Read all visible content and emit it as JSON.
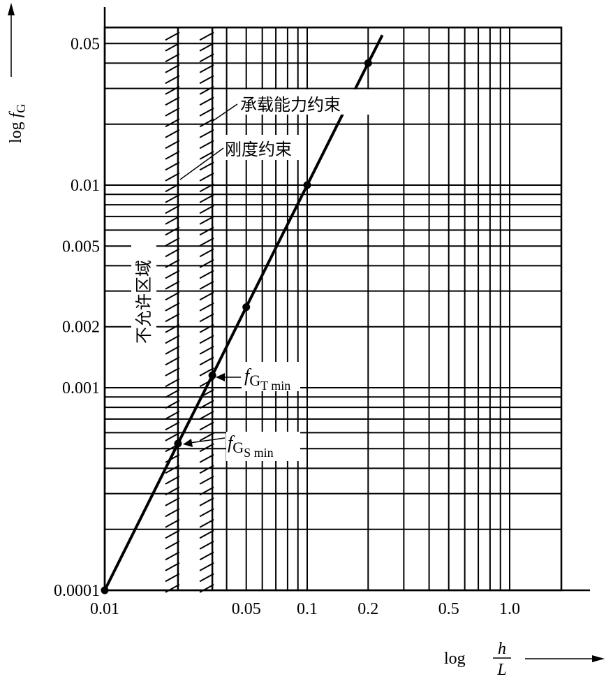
{
  "chart_data": {
    "type": "line",
    "scale": "log-log",
    "xlabel": {
      "prefix": "log",
      "numerator": "h",
      "denominator": "L"
    },
    "ylabel": {
      "prefix": "log",
      "var": "f",
      "sub": "G"
    },
    "xlim": [
      0.01,
      1.8
    ],
    "ylim": [
      0.0001,
      0.06
    ],
    "x_tick_labels": [
      {
        "value": 0.01,
        "label": "0.01"
      },
      {
        "value": 0.05,
        "label": "0.05"
      },
      {
        "value": 0.1,
        "label": "0.1"
      },
      {
        "value": 0.2,
        "label": "0.2"
      },
      {
        "value": 0.5,
        "label": "0.5"
      },
      {
        "value": 1.0,
        "label": "1.0"
      }
    ],
    "y_tick_labels": [
      {
        "value": 0.05,
        "label": "0.05"
      },
      {
        "value": 0.01,
        "label": "0.01"
      },
      {
        "value": 0.005,
        "label": "0.005"
      },
      {
        "value": 0.002,
        "label": "0.002"
      },
      {
        "value": 0.001,
        "label": "0.001"
      },
      {
        "value": 0.0001,
        "label": "0.0001"
      }
    ],
    "x_grid": [
      0.04,
      0.05,
      0.06,
      0.07,
      0.08,
      0.09,
      0.1,
      0.2,
      0.3,
      0.4,
      0.5,
      0.6,
      0.7,
      0.8,
      0.9,
      1.0
    ],
    "y_grid": [
      0.0002,
      0.0003,
      0.0004,
      0.0005,
      0.0006,
      0.0007,
      0.0008,
      0.0009,
      0.001,
      0.002,
      0.003,
      0.004,
      0.005,
      0.006,
      0.007,
      0.008,
      0.009,
      0.01,
      0.02,
      0.03,
      0.04,
      0.05
    ],
    "series": [
      {
        "name": "f_G vs h/L",
        "x": [
          0.01,
          0.023,
          0.034,
          0.05,
          0.1,
          0.2,
          0.235
        ],
        "y": [
          0.0001,
          0.00053,
          0.00115,
          0.0025,
          0.01,
          0.04,
          0.055
        ],
        "markers": [
          true,
          true,
          true,
          true,
          true,
          true,
          false
        ]
      }
    ],
    "constraints": [
      {
        "name": "承载能力约束",
        "x": 0.034
      },
      {
        "name": "刚度约束",
        "x": 0.023
      }
    ],
    "annotations": {
      "forbidden_region": "不允许区域",
      "bearing_constraint": "承载能力约束",
      "stiffness_constraint": "刚度约束",
      "fgt_min": {
        "var": "f",
        "sub": "G",
        "subsub": "T min"
      },
      "fgs_min": {
        "var": "f",
        "sub": "G",
        "subsub": "S min"
      }
    }
  }
}
